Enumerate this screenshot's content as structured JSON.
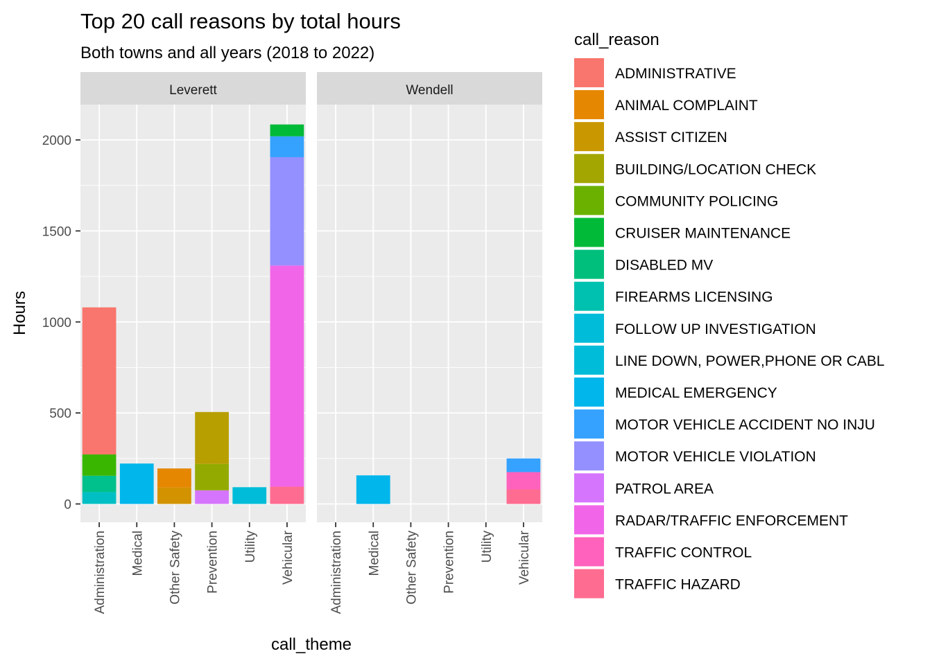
{
  "chart_data": {
    "type": "bar",
    "stacked": true,
    "title": "Top 20 call reasons by total hours",
    "subtitle": "Both towns and all years (2018 to 2022)",
    "xlabel": "call_theme",
    "ylabel": "Hours",
    "ylim": [
      -120,
      2250
    ],
    "yticks": [
      0,
      500,
      1000,
      1500,
      2000
    ],
    "categories": [
      "Administration",
      "Medical",
      "Other Safety",
      "Prevention",
      "Utility",
      "Vehicular"
    ],
    "legend_title": "call_reason",
    "legend_position": "right",
    "grid": true,
    "reasons": [
      {
        "name": "ADMINISTRATIVE",
        "color": "#F8766D"
      },
      {
        "name": "ANIMAL COMPLAINT",
        "color": "#E58700"
      },
      {
        "name": "ASSIST CITIZEN",
        "color": "#C99800"
      },
      {
        "name": "BUILDING/LOCATION CHECK",
        "color": "#A3A500"
      },
      {
        "name": "COMMUNITY POLICING",
        "color": "#6BB100"
      },
      {
        "name": "CRUISER MAINTENANCE",
        "color": "#00BA38"
      },
      {
        "name": "DISABLED MV",
        "color": "#00BF7D"
      },
      {
        "name": "FIREARMS LICENSING",
        "color": "#00C0AF"
      },
      {
        "name": "FOLLOW UP INVESTIGATION",
        "color": "#00BCD8"
      },
      {
        "name": "LINE DOWN, POWER,PHONE OR CABL",
        "color": "#00B0F6"
      },
      {
        "name": "MEDICAL EMERGENCY",
        "color": "#619CFF"
      },
      {
        "name": "MOTOR VEHICLE ACCIDENT NO INJU",
        "color": "#B983FF"
      },
      {
        "name": "MOTOR VEHICLE VIOLATION",
        "color": "#E76BF3"
      },
      {
        "name": "PATROL AREA",
        "color": "#FD61D1"
      },
      {
        "name": "RADAR/TRAFFIC ENFORCEMENT",
        "color": "#FF67A4"
      },
      {
        "name": "TRAFFIC CONTROL",
        "color": "#F8766D"
      },
      {
        "name": "TRAFFIC HAZARD",
        "color": "#E58700"
      }
    ],
    "legend_colors": [
      "#F8766D",
      "#E58700",
      "#C99800",
      "#A3A500",
      "#6BB100",
      "#00BA38",
      "#00BF7D",
      "#00C0AF",
      "#00BCD8",
      "#00BCD8",
      "#00B6EB",
      "#35A2FF",
      "#9590FF",
      "#D575FE",
      "#F166E8",
      "#FF62BC",
      "#FF6C91"
    ],
    "facets": [
      {
        "name": "Leverett",
        "bars": [
          {
            "category": "Administration",
            "segments": [
              {
                "reason": "FOLLOW UP INVESTIGATION",
                "color": "#00BFC4",
                "value": 65
              },
              {
                "reason": "FIREARMS LICENSING",
                "color": "#00C08B",
                "value": 90
              },
              {
                "reason": "CRUISER MAINTENANCE",
                "color": "#39B600",
                "value": 117
              },
              {
                "reason": "ADMINISTRATIVE",
                "color": "#F8766D",
                "value": 808
              }
            ]
          },
          {
            "category": "Medical",
            "segments": [
              {
                "reason": "MEDICAL EMERGENCY",
                "color": "#00B6EB",
                "value": 222
              }
            ]
          },
          {
            "category": "Other Safety",
            "segments": [
              {
                "reason": "ASSIST CITIZEN",
                "color": "#D39200",
                "value": 90
              },
              {
                "reason": "ANIMAL COMPLAINT",
                "color": "#E58700",
                "value": 105
              }
            ]
          },
          {
            "category": "Prevention",
            "segments": [
              {
                "reason": "PATROL AREA",
                "color": "#D575FE",
                "value": 75
              },
              {
                "reason": "COMMUNITY POLICING",
                "color": "#93AA00",
                "value": 145
              },
              {
                "reason": "BUILDING/LOCATION CHECK",
                "color": "#B79F00",
                "value": 285
              }
            ]
          },
          {
            "category": "Utility",
            "segments": [
              {
                "reason": "LINE DOWN, POWER,PHONE OR CABL",
                "color": "#00BCD8",
                "value": 92
              }
            ]
          },
          {
            "category": "Vehicular",
            "segments": [
              {
                "reason": "TRAFFIC HAZARD",
                "color": "#FF6C91",
                "value": 95
              },
              {
                "reason": "RADAR/TRAFFIC ENFORCEMENT",
                "color": "#F166E8",
                "value": 1215
              },
              {
                "reason": "MOTOR VEHICLE VIOLATION",
                "color": "#9590FF",
                "value": 595
              },
              {
                "reason": "MOTOR VEHICLE ACCIDENT NO INJU",
                "color": "#35A2FF",
                "value": 115
              },
              {
                "reason": "DISABLED MV",
                "color": "#00BA38",
                "value": 65
              }
            ]
          }
        ]
      },
      {
        "name": "Wendell",
        "bars": [
          {
            "category": "Administration",
            "segments": []
          },
          {
            "category": "Medical",
            "segments": [
              {
                "reason": "MEDICAL EMERGENCY",
                "color": "#00B6EB",
                "value": 157
              }
            ]
          },
          {
            "category": "Other Safety",
            "segments": []
          },
          {
            "category": "Prevention",
            "segments": []
          },
          {
            "category": "Utility",
            "segments": []
          },
          {
            "category": "Vehicular",
            "segments": [
              {
                "reason": "TRAFFIC HAZARD",
                "color": "#FF6C91",
                "value": 80
              },
              {
                "reason": "TRAFFIC CONTROL",
                "color": "#FF62BC",
                "value": 95
              },
              {
                "reason": "MOTOR VEHICLE ACCIDENT NO INJU",
                "color": "#35A2FF",
                "value": 75
              }
            ]
          }
        ]
      }
    ]
  }
}
